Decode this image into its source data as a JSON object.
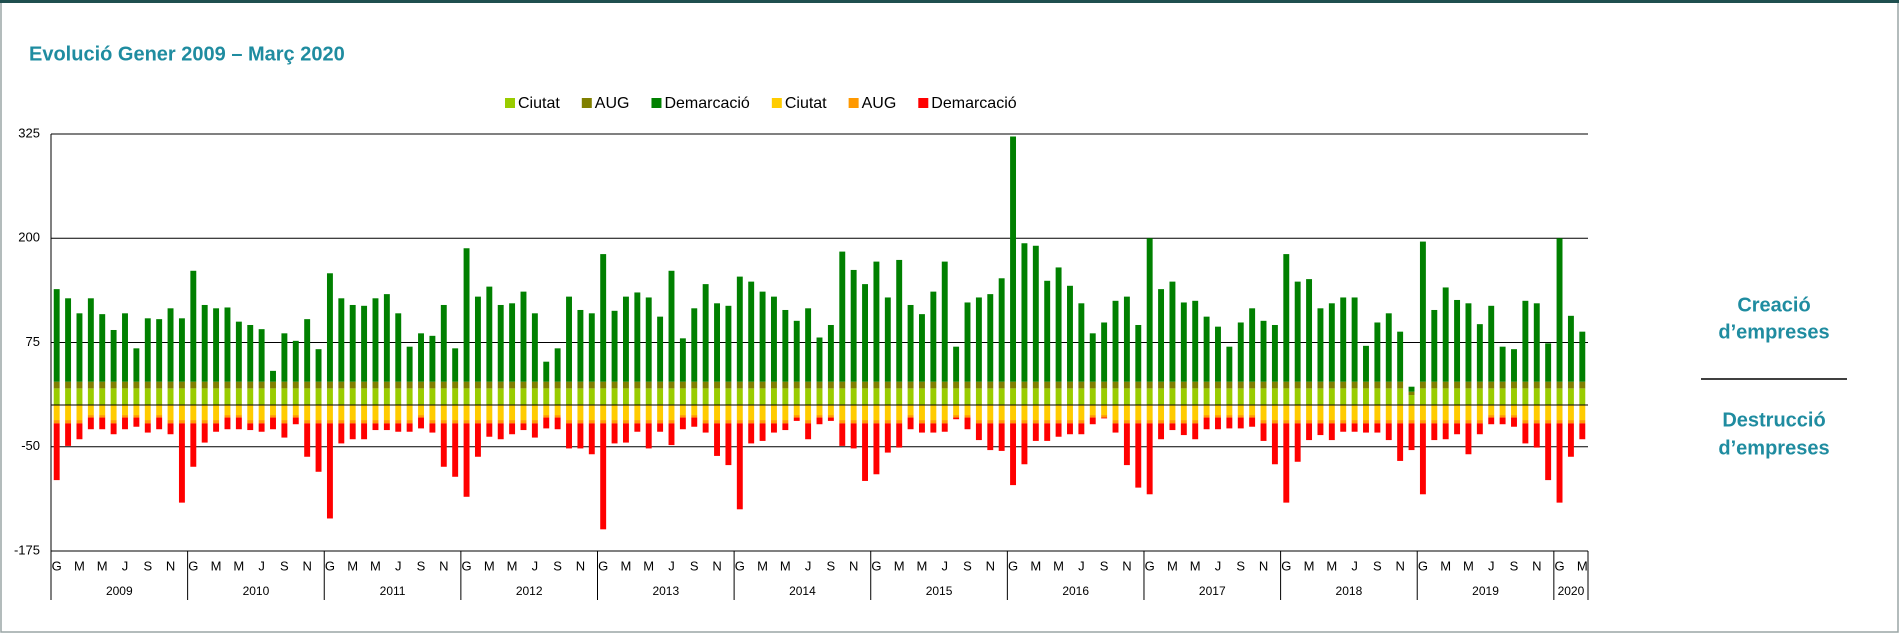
{
  "chart_data": {
    "type": "bar",
    "stacked": true,
    "title": "Evolució Gener 2009 – Març 2020",
    "categories": [
      "G",
      null,
      "M",
      null,
      "M",
      null,
      "J",
      null,
      "S",
      null,
      "N",
      null,
      "G",
      null,
      "M",
      null,
      "M",
      null,
      "J",
      null,
      "S",
      null,
      "N",
      null,
      "G",
      null,
      "M",
      null,
      "M",
      null,
      "J",
      null,
      "S",
      null,
      "N",
      null,
      "G",
      null,
      "M",
      null,
      "M",
      null,
      "J",
      null,
      "S",
      null,
      "N",
      null,
      "G",
      null,
      "M",
      null,
      "M",
      null,
      "J",
      null,
      "S",
      null,
      "N",
      null,
      "G",
      null,
      "M",
      null,
      "M",
      null,
      "J",
      null,
      "S",
      null,
      "N",
      null,
      "G",
      null,
      "M",
      null,
      "M",
      null,
      "J",
      null,
      "S",
      null,
      "N",
      null,
      "G",
      null,
      "M",
      null,
      "M",
      null,
      "J",
      null,
      "S",
      null,
      "N",
      null,
      "G",
      null,
      "M",
      null,
      "M",
      null,
      "J",
      null,
      "S",
      null,
      "N",
      null,
      "G",
      null,
      "M",
      null,
      "M",
      null,
      "J",
      null,
      "S",
      null,
      "N",
      null,
      "G",
      null,
      "M",
      null,
      "M",
      null,
      "J",
      null,
      "S",
      null,
      "N",
      null,
      "G",
      null,
      "M"
    ],
    "years": [
      "2009",
      "2010",
      "2011",
      "2012",
      "2013",
      "2014",
      "2015",
      "2016",
      "2017",
      "2018",
      "2019",
      "2020"
    ],
    "ylim": [
      -175,
      325
    ],
    "yticks": [
      -175,
      -50,
      75,
      200,
      325
    ],
    "grid": true,
    "legend": "top",
    "annotations": [
      [
        "Creació",
        "d’empreses"
      ],
      [
        "Destrucció",
        "d’empreses"
      ]
    ],
    "series": [
      {
        "name": "Ciutat",
        "color": "#99cc00",
        "values": [
          20,
          20,
          20,
          20,
          20,
          20,
          20,
          20,
          20,
          20,
          20,
          20,
          20,
          20,
          20,
          20,
          20,
          20,
          20,
          20,
          20,
          20,
          20,
          20,
          20,
          20,
          20,
          20,
          20,
          20,
          20,
          20,
          20,
          20,
          20,
          20,
          20,
          20,
          20,
          20,
          20,
          20,
          20,
          20,
          20,
          20,
          20,
          20,
          20,
          20,
          20,
          20,
          20,
          20,
          20,
          20,
          20,
          20,
          20,
          20,
          20,
          20,
          20,
          20,
          20,
          20,
          20,
          20,
          20,
          20,
          20,
          20,
          20,
          20,
          20,
          20,
          20,
          20,
          20,
          20,
          20,
          20,
          20,
          20,
          20,
          20,
          20,
          20,
          20,
          20,
          20,
          20,
          20,
          20,
          20,
          20,
          20,
          20,
          20,
          20,
          20,
          20,
          20,
          20,
          20,
          20,
          20,
          20,
          20,
          20,
          20,
          20,
          20,
          20,
          20,
          20,
          20,
          20,
          20,
          12,
          20,
          20,
          20,
          20,
          20,
          20,
          20,
          20,
          20,
          20,
          20,
          20,
          20,
          20,
          20
        ]
      },
      {
        "name": "AUG",
        "color": "#808000",
        "values": [
          8,
          8,
          8,
          8,
          8,
          8,
          8,
          8,
          8,
          8,
          8,
          8,
          8,
          8,
          8,
          8,
          8,
          8,
          8,
          8,
          8,
          8,
          8,
          8,
          8,
          8,
          8,
          8,
          8,
          8,
          8,
          8,
          8,
          8,
          8,
          8,
          8,
          8,
          8,
          8,
          8,
          8,
          8,
          8,
          8,
          8,
          8,
          8,
          8,
          8,
          8,
          8,
          8,
          8,
          8,
          8,
          8,
          8,
          8,
          8,
          8,
          8,
          8,
          8,
          8,
          8,
          8,
          8,
          8,
          8,
          8,
          8,
          8,
          8,
          8,
          8,
          8,
          8,
          8,
          8,
          8,
          8,
          8,
          8,
          8,
          8,
          8,
          8,
          8,
          8,
          8,
          8,
          8,
          8,
          8,
          8,
          8,
          8,
          8,
          8,
          8,
          8,
          8,
          8,
          8,
          8,
          8,
          8,
          8,
          8,
          8,
          8,
          8,
          8,
          8,
          8,
          8,
          8,
          8,
          4,
          8,
          8,
          8,
          8,
          8,
          8,
          8,
          8,
          8,
          8,
          8,
          8,
          8,
          8,
          8
        ]
      },
      {
        "name": "Demarcació",
        "color": "#008000",
        "values": [
          111,
          100,
          82,
          100,
          81,
          62,
          82,
          40,
          76,
          75,
          88,
          76,
          133,
          92,
          88,
          89,
          72,
          68,
          63,
          13,
          58,
          49,
          75,
          39,
          130,
          100,
          92,
          91,
          100,
          105,
          82,
          42,
          58,
          55,
          92,
          40,
          160,
          102,
          114,
          92,
          94,
          108,
          82,
          24,
          40,
          102,
          86,
          82,
          153,
          85,
          102,
          107,
          101,
          78,
          133,
          52,
          88,
          117,
          94,
          91,
          126,
          120,
          108,
          102,
          86,
          73,
          88,
          53,
          68,
          156,
          134,
          117,
          144,
          101,
          146,
          92,
          81,
          108,
          144,
          42,
          95,
          101,
          105,
          124,
          294,
          166,
          163,
          121,
          137,
          115,
          94,
          58,
          71,
          97,
          102,
          68,
          172,
          111,
          120,
          95,
          97,
          78,
          66,
          42,
          71,
          88,
          73,
          68,
          153,
          120,
          123,
          88,
          94,
          101,
          101,
          43,
          71,
          82,
          60,
          6,
          168,
          86,
          113,
          98,
          94,
          69,
          91,
          42,
          39,
          97,
          94,
          46,
          172,
          79,
          60
        ]
      },
      {
        "name": "Ciutat",
        "color": "#ffcc00",
        "values": [
          -18,
          -18,
          -18,
          -12,
          -12,
          -18,
          -12,
          -12,
          -18,
          -12,
          -18,
          -18,
          -18,
          -18,
          -18,
          -12,
          -12,
          -18,
          -18,
          -12,
          -18,
          -12,
          -18,
          -18,
          -18,
          -18,
          -18,
          -18,
          -18,
          -18,
          -18,
          -18,
          -12,
          -18,
          -18,
          -18,
          -18,
          -18,
          -18,
          -18,
          -18,
          -18,
          -18,
          -12,
          -12,
          -18,
          -18,
          -18,
          -18,
          -18,
          -18,
          -18,
          -18,
          -18,
          -18,
          -12,
          -12,
          -18,
          -18,
          -18,
          -18,
          -18,
          -18,
          -18,
          -18,
          -12,
          -18,
          -12,
          -12,
          -18,
          -18,
          -18,
          -18,
          -18,
          -18,
          -12,
          -18,
          -18,
          -18,
          -12,
          -12,
          -18,
          -18,
          -18,
          -18,
          -18,
          -18,
          -18,
          -18,
          -18,
          -18,
          -12,
          -12,
          -18,
          -18,
          -18,
          -18,
          -18,
          -18,
          -18,
          -18,
          -12,
          -12,
          -12,
          -12,
          -12,
          -18,
          -18,
          -18,
          -18,
          -18,
          -18,
          -18,
          -18,
          -18,
          -18,
          -18,
          -18,
          -18,
          -18,
          -18,
          -18,
          -18,
          -18,
          -18,
          -18,
          -12,
          -12,
          -12,
          -18,
          -18,
          -18,
          -18,
          -18,
          -18
        ]
      },
      {
        "name": "AUG",
        "color": "#ff9900",
        "values": [
          -4,
          -4,
          -4,
          -3,
          -3,
          -4,
          -3,
          -3,
          -4,
          -3,
          -4,
          -4,
          -4,
          -4,
          -4,
          -3,
          -3,
          -4,
          -4,
          -3,
          -4,
          -3,
          -4,
          -4,
          -4,
          -4,
          -4,
          -4,
          -4,
          -4,
          -4,
          -4,
          -3,
          -4,
          -4,
          -4,
          -4,
          -4,
          -4,
          -4,
          -4,
          -4,
          -4,
          -3,
          -3,
          -4,
          -4,
          -4,
          -4,
          -4,
          -4,
          -4,
          -4,
          -4,
          -4,
          -3,
          -3,
          -4,
          -4,
          -4,
          -4,
          -4,
          -4,
          -4,
          -4,
          -3,
          -4,
          -3,
          -3,
          -4,
          -4,
          -4,
          -4,
          -4,
          -4,
          -3,
          -4,
          -4,
          -4,
          -3,
          -3,
          -4,
          -4,
          -4,
          -4,
          -4,
          -4,
          -4,
          -4,
          -4,
          -4,
          -3,
          -3,
          -4,
          -4,
          -4,
          -4,
          -4,
          -4,
          -4,
          -4,
          -3,
          -3,
          -3,
          -3,
          -3,
          -4,
          -4,
          -4,
          -4,
          -4,
          -4,
          -4,
          -4,
          -4,
          -4,
          -4,
          -4,
          -4,
          -4,
          -4,
          -4,
          -4,
          -4,
          -4,
          -4,
          -3,
          -3,
          -3,
          -4,
          -4,
          -4,
          -4,
          -4,
          -4
        ]
      },
      {
        "name": "Demarcació",
        "color": "#ff0000",
        "values": [
          -68,
          -27,
          -19,
          -14,
          -14,
          -13,
          -14,
          -11,
          -11,
          -14,
          -13,
          -95,
          -52,
          -23,
          -10,
          -14,
          -14,
          -8,
          -10,
          -14,
          -17,
          -8,
          -40,
          -58,
          -114,
          -24,
          -19,
          -19,
          -8,
          -8,
          -10,
          -10,
          -13,
          -11,
          -52,
          -64,
          -88,
          -40,
          -16,
          -19,
          -13,
          -8,
          -17,
          -13,
          -14,
          -30,
          -30,
          -37,
          -127,
          -24,
          -23,
          -10,
          -30,
          -10,
          -26,
          -14,
          -11,
          -11,
          -39,
          -50,
          -103,
          -24,
          -21,
          -11,
          -8,
          -4,
          -19,
          -8,
          -4,
          -27,
          -30,
          -69,
          -61,
          -35,
          -29,
          -14,
          -11,
          -11,
          -10,
          -2,
          -14,
          -20,
          -32,
          -33,
          -74,
          -49,
          -21,
          -21,
          -16,
          -13,
          -13,
          -8,
          -1,
          -11,
          -50,
          -77,
          -85,
          -19,
          -8,
          -14,
          -19,
          -14,
          -14,
          -13,
          -13,
          -11,
          -21,
          -49,
          -95,
          -46,
          -20,
          -14,
          -20,
          -10,
          -10,
          -11,
          -11,
          -20,
          -45,
          -32,
          -85,
          -20,
          -19,
          -13,
          -37,
          -13,
          -8,
          -8,
          -11,
          -24,
          -29,
          -68,
          -95,
          -40,
          -19
        ]
      }
    ]
  }
}
